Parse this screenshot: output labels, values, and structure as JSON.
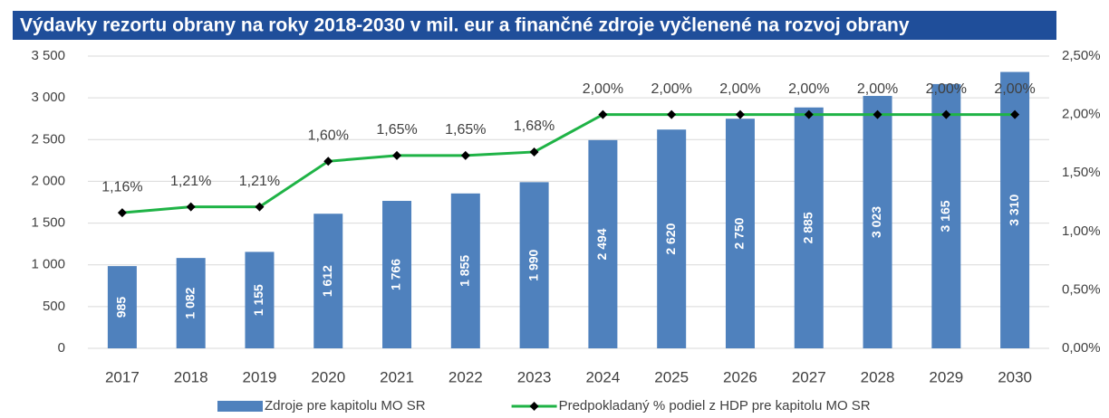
{
  "chart_data": {
    "type": "bar",
    "title": "Výdavky rezortu obrany na roky 2018-2030 v mil. eur a finančné zdroje vyčlenené na rozvoj obrany",
    "categories": [
      "2017",
      "2018",
      "2019",
      "2020",
      "2021",
      "2022",
      "2023",
      "2024",
      "2025",
      "2026",
      "2027",
      "2028",
      "2029",
      "2030"
    ],
    "series": [
      {
        "name": "Zdroje pre kapitolu MO SR",
        "type": "bar",
        "axis": "y",
        "color": "#4f81bd",
        "values": [
          985,
          1082,
          1155,
          1612,
          1766,
          1855,
          1990,
          2494,
          2620,
          2750,
          2885,
          3023,
          3165,
          3310
        ],
        "value_labels": [
          "985",
          "1 082",
          "1 155",
          "1 612",
          "1 766",
          "1 855",
          "1 990",
          "2 494",
          "2 620",
          "2 750",
          "2 885",
          "3 023",
          "3 165",
          "3 310"
        ]
      },
      {
        "name": "Predpokladaný % podiel z HDP pre kapitolu MO SR",
        "type": "line",
        "axis": "y2",
        "color": "#1fb346",
        "values": [
          1.16,
          1.21,
          1.21,
          1.6,
          1.65,
          1.65,
          1.68,
          2.0,
          2.0,
          2.0,
          2.0,
          2.0,
          2.0,
          2.0
        ],
        "value_labels": [
          "1,16%",
          "1,21%",
          "1,21%",
          "1,60%",
          "1,65%",
          "1,65%",
          "1,68%",
          "2,00%",
          "2,00%",
          "2,00%",
          "2,00%",
          "2,00%",
          "2,00%",
          "2,00%"
        ]
      }
    ],
    "ylim": [
      0,
      3500
    ],
    "yticks": [
      0,
      500,
      {
        "value": 1000,
        "label": "1 000"
      },
      {
        "value": 1500,
        "label": "1 500"
      },
      {
        "value": 2000,
        "label": "2 000"
      },
      {
        "value": 2500,
        "label": "2 500"
      },
      {
        "value": 3000,
        "label": "3 000"
      },
      {
        "value": 3500,
        "label": "3 500"
      }
    ],
    "y2lim": [
      0,
      2.5
    ],
    "y2ticks": [
      {
        "value": 0,
        "label": "0,00%"
      },
      {
        "value": 0.5,
        "label": "0,50%"
      },
      {
        "value": 1,
        "label": "1,00%"
      },
      {
        "value": 1.5,
        "label": "1,50%"
      },
      {
        "value": 2,
        "label": "2,00%"
      },
      {
        "value": 2.5,
        "label": "2,50%"
      }
    ],
    "grid": true,
    "legend": "bottom"
  }
}
